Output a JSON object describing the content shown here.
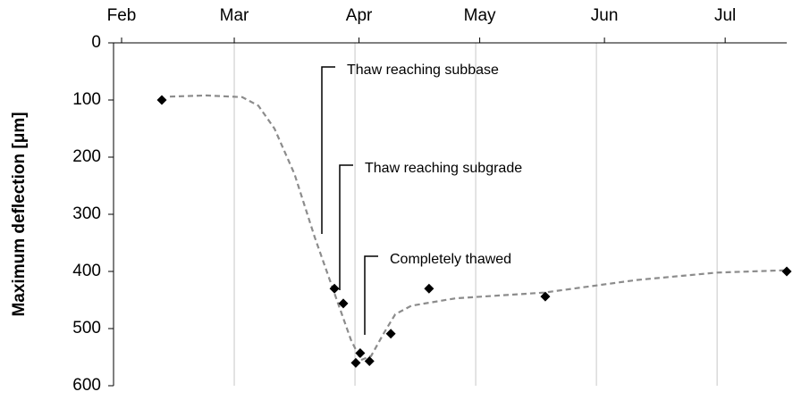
{
  "chart_data": {
    "type": "scatter",
    "y_label": "Maximum deflection [μm]",
    "x": [
      42,
      84.9,
      87.1,
      90.2,
      91.3,
      93.6,
      98.9,
      108.4,
      137.3,
      197.3
    ],
    "values": [
      100,
      430,
      456,
      560,
      543,
      557,
      509,
      430,
      444,
      400
    ],
    "color": "#000000",
    "trend": {
      "color": "#8c8c8c",
      "x": [
        44,
        53,
        62,
        66,
        70,
        75,
        80,
        85,
        89,
        91.5,
        94,
        97,
        100,
        104,
        115,
        137,
        160,
        180,
        197
      ],
      "values": [
        94,
        92,
        95,
        110,
        150,
        230,
        340,
        440,
        520,
        555,
        548,
        510,
        475,
        460,
        447,
        437,
        415,
        402,
        398
      ]
    },
    "xlim": [
      30,
      197.3
    ],
    "xticks": [
      {
        "value": 32,
        "label": "Feb"
      },
      {
        "value": 60,
        "label": "Mar"
      },
      {
        "value": 91,
        "label": "Apr"
      },
      {
        "value": 121,
        "label": "May"
      },
      {
        "value": 152,
        "label": "Jun"
      },
      {
        "value": 182,
        "label": "Jul"
      }
    ],
    "xgrid": [
      60,
      90,
      120,
      150,
      180
    ],
    "ylim": [
      0,
      600
    ],
    "y_inverted": true,
    "yticks": [
      0,
      100,
      200,
      300,
      400,
      500,
      600
    ],
    "annotations": [
      "Thaw reaching subbase",
      "Thaw reaching subgrade",
      "Completely thawed"
    ]
  }
}
